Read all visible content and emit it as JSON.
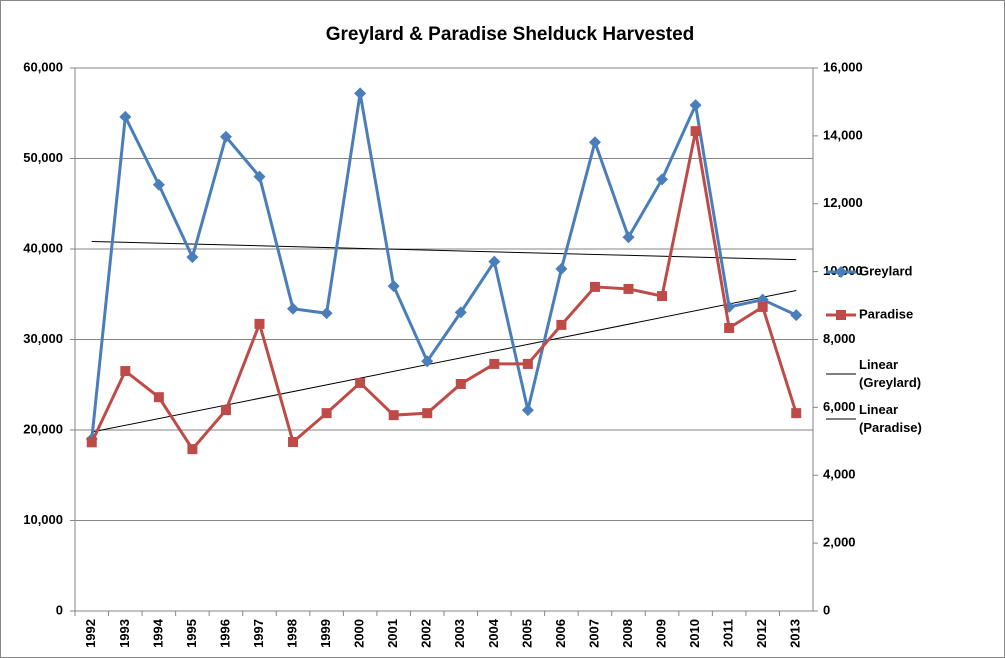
{
  "chart_data": {
    "type": "line",
    "title": "Greylard & Paradise Shelduck Harvested",
    "categories": [
      "1992",
      "1993",
      "1994",
      "1995",
      "1996",
      "1997",
      "1998",
      "1999",
      "2000",
      "2001",
      "2002",
      "2003",
      "2004",
      "2005",
      "2006",
      "2007",
      "2008",
      "2009",
      "2010",
      "2011",
      "2012",
      "2013"
    ],
    "series": [
      {
        "name": "Greylard",
        "color": "#4a7ebb",
        "marker": "diamond",
        "values": [
          19000,
          54600,
          47100,
          39100,
          52400,
          48000,
          33400,
          32900,
          57200,
          35900,
          27600,
          33000,
          38600,
          22200,
          37800,
          51800,
          41300,
          47700,
          55900,
          33600,
          34400,
          32700
        ]
      },
      {
        "name": "Paradise",
        "color": "#be4b48",
        "marker": "square",
        "axis": "y2",
        "values": [
          4970,
          7070,
          6300,
          4770,
          5920,
          8460,
          4980,
          5830,
          6720,
          5770,
          5830,
          6690,
          7280,
          7280,
          8430,
          9550,
          9490,
          9280,
          14140,
          8340,
          8960,
          5830
        ]
      }
    ],
    "trendlines": [
      {
        "name": "Linear (Greylard)",
        "series": 0,
        "color": "#000000"
      },
      {
        "name": "Linear (Paradise)",
        "series": 1,
        "color": "#000000"
      }
    ],
    "ylim": [
      0,
      60000
    ],
    "yticks": [
      0,
      {
        "value": 10000,
        "label": "10,000"
      },
      {
        "value": 20000,
        "label": "20,000"
      },
      {
        "value": 30000,
        "label": "30,000"
      },
      {
        "value": 40000,
        "label": "40,000"
      },
      {
        "value": 50000,
        "label": "50,000"
      },
      {
        "value": 60000,
        "label": "60,000"
      }
    ],
    "y2lim": [
      0,
      16000
    ],
    "y2ticks": [
      0,
      {
        "value": 2000,
        "label": "2,000"
      },
      {
        "value": 4000,
        "label": "4,000"
      },
      {
        "value": 6000,
        "label": "6,000"
      },
      {
        "value": 8000,
        "label": "8,000"
      },
      {
        "value": 10000,
        "label": "10,000"
      },
      {
        "value": 12000,
        "label": "12,000"
      },
      {
        "value": 14000,
        "label": "14,000"
      },
      {
        "value": 16000,
        "label": "16,000"
      }
    ],
    "grid": true,
    "legend": "right"
  }
}
